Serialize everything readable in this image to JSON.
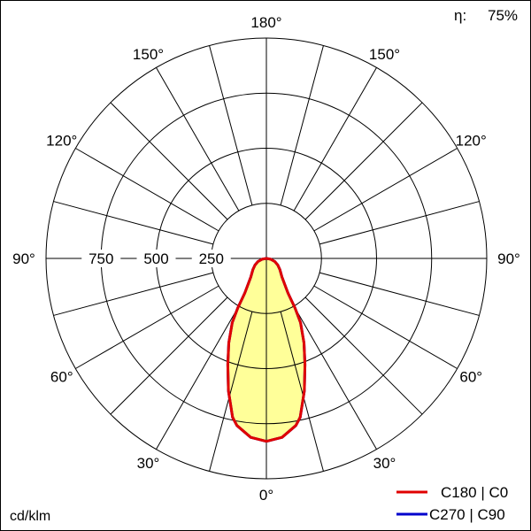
{
  "chart_data": {
    "type": "polar",
    "efficiency_label": "η:",
    "efficiency_value": "75%",
    "unit_label": "cd/klm",
    "radial_ticks": [
      250,
      500,
      750
    ],
    "radial_max": 1000,
    "angle_labels": [
      "0°",
      "30°",
      "60°",
      "90°",
      "120°",
      "150°",
      "180°"
    ],
    "angle_grid_step_deg": 15,
    "grid": true,
    "legend_position": "bottom-right",
    "series": [
      {
        "name": "C270 | C90",
        "color": "#0000cc",
        "angles": [
          0,
          5,
          10,
          12,
          16,
          20,
          24,
          28,
          30,
          32,
          40,
          50,
          60,
          70,
          80,
          90
        ],
        "values": [
          830,
          815,
          770,
          737,
          625,
          512,
          420,
          330,
          260,
          185,
          110,
          80,
          60,
          40,
          20,
          0
        ]
      },
      {
        "name": "C180 | C0",
        "color": "#e00000",
        "fill": "#ffff99",
        "angles": [
          0,
          5,
          10,
          12,
          16,
          20,
          24,
          28,
          30,
          32,
          40,
          50,
          60,
          70,
          80,
          90
        ],
        "values": [
          830,
          815,
          770,
          737,
          625,
          512,
          420,
          330,
          260,
          185,
          110,
          80,
          60,
          40,
          20,
          0
        ]
      }
    ]
  }
}
